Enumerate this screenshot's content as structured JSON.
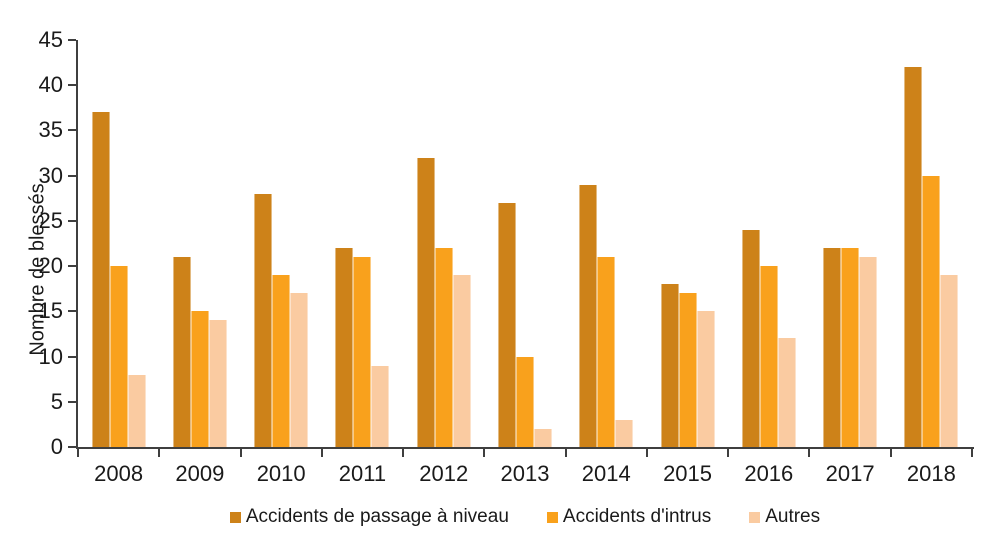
{
  "chart_data": {
    "type": "bar",
    "title": "",
    "xlabel": "",
    "ylabel": "Nombre de blessés",
    "ylim": [
      0,
      45
    ],
    "ytick_step": 5,
    "grid": false,
    "legend_position": "bottom",
    "categories": [
      "2008",
      "2009",
      "2010",
      "2011",
      "2012",
      "2013",
      "2014",
      "2015",
      "2016",
      "2017",
      "2018"
    ],
    "series": [
      {
        "name": "Accidents de passage à niveau",
        "color": "#CD8219",
        "values": [
          37,
          21,
          28,
          22,
          32,
          27,
          29,
          18,
          24,
          22,
          42
        ]
      },
      {
        "name": "Accidents d'intrus",
        "color": "#F9A11C",
        "values": [
          20,
          15,
          19,
          21,
          22,
          10,
          21,
          17,
          20,
          22,
          30
        ]
      },
      {
        "name": "Autres",
        "color": "#FACBA1",
        "values": [
          8,
          14,
          17,
          9,
          19,
          2,
          3,
          15,
          12,
          21,
          19
        ]
      }
    ],
    "colors": {
      "axis": "#3f3f3f",
      "text": "#1a1a1a"
    }
  }
}
